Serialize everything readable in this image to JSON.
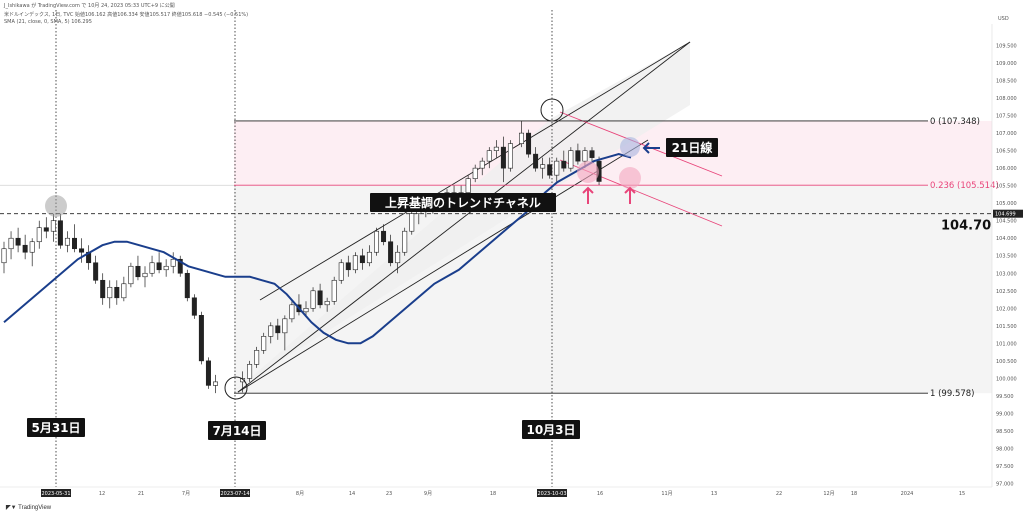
{
  "header": {
    "line1": "J_Ishikawa が TradingView.com で 10月 24, 2023 05:33 UTC+9 に公開",
    "line2": "米ドルインデックス, 1日, TVC  始値106.162  高値106.334  安値105.517  終値105.618  −0.545 (−0.51%)",
    "line3": "SMA (21, close, 0, SMA, 5)  106.295"
  },
  "currency": "USD",
  "footer_brand": "TradingView",
  "colors": {
    "sma": "#1a3e8c",
    "fib_pink": "#e8457a",
    "ring_pink": "#f4a6c0",
    "ring_blue": "#a9b4e0",
    "arrow_pink": "#e8457a",
    "arrow_blue": "#1a3e8c"
  },
  "chart_data": {
    "type": "candlestick",
    "symbol": "米ドルインデックス",
    "timeframe": "1日",
    "ylim": [
      96.9,
      110.0
    ],
    "x_tick_labels": [
      "2023-05-31",
      "12",
      "21",
      "7月",
      "2023-07-14",
      "8月",
      "14",
      "23",
      "9月",
      "18",
      "2023-10-03",
      "16",
      "11月",
      "13",
      "22",
      "12月",
      "18",
      "2024",
      "15"
    ],
    "y_tick_labels": [
      "109.500",
      "109.000",
      "108.500",
      "108.000",
      "107.500",
      "107.000",
      "106.500",
      "106.000",
      "105.500",
      "105.000",
      "104.500",
      "104.000",
      "103.500",
      "103.000",
      "102.500",
      "102.000",
      "101.500",
      "101.000",
      "100.500",
      "100.000",
      "99.500",
      "99.000",
      "98.500",
      "98.000",
      "97.500",
      "97.000"
    ],
    "price_badge": "104.699",
    "fib_levels": [
      {
        "label": "0 (107.348)",
        "value": 107.348
      },
      {
        "label": "0.236 (105.514)",
        "value": 105.514
      },
      {
        "label": "1 (99.578)",
        "value": 99.578
      }
    ],
    "horizontal_line": {
      "value": 104.7,
      "label": "104.70"
    },
    "candles": [
      {
        "o": 103.3,
        "h": 103.9,
        "l": 103.0,
        "c": 103.7
      },
      {
        "o": 103.7,
        "h": 104.2,
        "l": 103.4,
        "c": 104.0
      },
      {
        "o": 104.0,
        "h": 104.3,
        "l": 103.6,
        "c": 103.8
      },
      {
        "o": 103.8,
        "h": 104.1,
        "l": 103.4,
        "c": 103.6
      },
      {
        "o": 103.6,
        "h": 104.0,
        "l": 103.2,
        "c": 103.9
      },
      {
        "o": 103.9,
        "h": 104.5,
        "l": 103.7,
        "c": 104.3
      },
      {
        "o": 104.3,
        "h": 104.6,
        "l": 104.0,
        "c": 104.2
      },
      {
        "o": 104.2,
        "h": 104.7,
        "l": 103.9,
        "c": 104.5
      },
      {
        "o": 104.5,
        "h": 104.7,
        "l": 103.7,
        "c": 103.8
      },
      {
        "o": 103.8,
        "h": 104.2,
        "l": 103.6,
        "c": 104.0
      },
      {
        "o": 104.0,
        "h": 104.4,
        "l": 103.6,
        "c": 103.7
      },
      {
        "o": 103.7,
        "h": 104.0,
        "l": 103.3,
        "c": 103.6
      },
      {
        "o": 103.6,
        "h": 103.8,
        "l": 103.1,
        "c": 103.3
      },
      {
        "o": 103.3,
        "h": 103.5,
        "l": 102.7,
        "c": 102.8
      },
      {
        "o": 102.8,
        "h": 103.0,
        "l": 102.1,
        "c": 102.3
      },
      {
        "o": 102.3,
        "h": 102.8,
        "l": 102.0,
        "c": 102.6
      },
      {
        "o": 102.6,
        "h": 102.8,
        "l": 102.1,
        "c": 102.3
      },
      {
        "o": 102.3,
        "h": 102.9,
        "l": 102.2,
        "c": 102.7
      },
      {
        "o": 102.7,
        "h": 103.3,
        "l": 102.6,
        "c": 103.2
      },
      {
        "o": 103.2,
        "h": 103.5,
        "l": 102.8,
        "c": 102.9
      },
      {
        "o": 102.9,
        "h": 103.2,
        "l": 102.6,
        "c": 103.0
      },
      {
        "o": 103.0,
        "h": 103.5,
        "l": 102.9,
        "c": 103.3
      },
      {
        "o": 103.3,
        "h": 103.6,
        "l": 103.0,
        "c": 103.1
      },
      {
        "o": 103.1,
        "h": 103.4,
        "l": 102.9,
        "c": 103.2
      },
      {
        "o": 103.2,
        "h": 103.6,
        "l": 103.0,
        "c": 103.4
      },
      {
        "o": 103.4,
        "h": 103.5,
        "l": 102.9,
        "c": 103.0
      },
      {
        "o": 103.0,
        "h": 103.1,
        "l": 102.2,
        "c": 102.3
      },
      {
        "o": 102.3,
        "h": 102.4,
        "l": 101.7,
        "c": 101.8
      },
      {
        "o": 101.8,
        "h": 101.9,
        "l": 100.4,
        "c": 100.5
      },
      {
        "o": 100.5,
        "h": 100.6,
        "l": 99.7,
        "c": 99.8
      },
      {
        "o": 99.8,
        "h": 100.1,
        "l": 99.58,
        "c": 99.9
      },
      {
        "o": 99.9,
        "h": 100.2,
        "l": 99.6,
        "c": 100.0
      },
      {
        "o": 100.0,
        "h": 100.5,
        "l": 99.9,
        "c": 100.4
      },
      {
        "o": 100.4,
        "h": 100.9,
        "l": 100.3,
        "c": 100.8
      },
      {
        "o": 100.8,
        "h": 101.3,
        "l": 100.7,
        "c": 101.2
      },
      {
        "o": 101.2,
        "h": 101.6,
        "l": 101.0,
        "c": 101.5
      },
      {
        "o": 101.5,
        "h": 101.7,
        "l": 101.1,
        "c": 101.3
      },
      {
        "o": 101.3,
        "h": 101.8,
        "l": 100.8,
        "c": 101.7
      },
      {
        "o": 101.7,
        "h": 102.2,
        "l": 101.6,
        "c": 102.1
      },
      {
        "o": 102.1,
        "h": 102.4,
        "l": 101.8,
        "c": 101.9
      },
      {
        "o": 101.9,
        "h": 102.2,
        "l": 101.8,
        "c": 102.0
      },
      {
        "o": 102.0,
        "h": 102.6,
        "l": 101.9,
        "c": 102.5
      },
      {
        "o": 102.5,
        "h": 102.7,
        "l": 102.0,
        "c": 102.1
      },
      {
        "o": 102.1,
        "h": 102.3,
        "l": 101.9,
        "c": 102.2
      },
      {
        "o": 102.2,
        "h": 102.9,
        "l": 102.1,
        "c": 102.8
      },
      {
        "o": 102.8,
        "h": 103.4,
        "l": 102.7,
        "c": 103.3
      },
      {
        "o": 103.3,
        "h": 103.5,
        "l": 102.9,
        "c": 103.1
      },
      {
        "o": 103.1,
        "h": 103.6,
        "l": 103.0,
        "c": 103.5
      },
      {
        "o": 103.5,
        "h": 103.7,
        "l": 103.1,
        "c": 103.3
      },
      {
        "o": 103.3,
        "h": 103.8,
        "l": 103.2,
        "c": 103.6
      },
      {
        "o": 103.6,
        "h": 104.3,
        "l": 103.5,
        "c": 104.2
      },
      {
        "o": 104.2,
        "h": 104.4,
        "l": 103.8,
        "c": 103.9
      },
      {
        "o": 103.9,
        "h": 104.1,
        "l": 103.2,
        "c": 103.3
      },
      {
        "o": 103.3,
        "h": 103.8,
        "l": 103.0,
        "c": 103.6
      },
      {
        "o": 103.6,
        "h": 104.3,
        "l": 103.5,
        "c": 104.2
      },
      {
        "o": 104.2,
        "h": 104.8,
        "l": 104.1,
        "c": 104.7
      },
      {
        "o": 104.7,
        "h": 104.9,
        "l": 104.4,
        "c": 104.8
      },
      {
        "o": 104.8,
        "h": 105.0,
        "l": 104.6,
        "c": 104.9
      },
      {
        "o": 104.9,
        "h": 105.2,
        "l": 104.7,
        "c": 105.1
      },
      {
        "o": 105.1,
        "h": 105.2,
        "l": 104.8,
        "c": 104.9
      },
      {
        "o": 104.9,
        "h": 105.4,
        "l": 104.8,
        "c": 105.3
      },
      {
        "o": 105.3,
        "h": 105.5,
        "l": 105.0,
        "c": 105.1
      },
      {
        "o": 105.1,
        "h": 105.5,
        "l": 105.0,
        "c": 105.3
      },
      {
        "o": 105.3,
        "h": 105.8,
        "l": 105.2,
        "c": 105.7
      },
      {
        "o": 105.7,
        "h": 106.1,
        "l": 105.6,
        "c": 106.0
      },
      {
        "o": 106.0,
        "h": 106.3,
        "l": 105.8,
        "c": 106.2
      },
      {
        "o": 106.2,
        "h": 106.6,
        "l": 106.0,
        "c": 106.5
      },
      {
        "o": 106.5,
        "h": 106.8,
        "l": 106.3,
        "c": 106.6
      },
      {
        "o": 106.6,
        "h": 106.9,
        "l": 105.6,
        "c": 106.0
      },
      {
        "o": 106.0,
        "h": 106.8,
        "l": 105.9,
        "c": 106.7
      },
      {
        "o": 106.7,
        "h": 107.35,
        "l": 106.6,
        "c": 107.0
      },
      {
        "o": 107.0,
        "h": 107.1,
        "l": 106.3,
        "c": 106.4
      },
      {
        "o": 106.4,
        "h": 106.6,
        "l": 105.9,
        "c": 106.0
      },
      {
        "o": 106.0,
        "h": 106.3,
        "l": 105.7,
        "c": 106.1
      },
      {
        "o": 106.1,
        "h": 106.3,
        "l": 105.7,
        "c": 105.8
      },
      {
        "o": 105.8,
        "h": 106.3,
        "l": 105.6,
        "c": 106.2
      },
      {
        "o": 106.2,
        "h": 106.5,
        "l": 105.9,
        "c": 106.0
      },
      {
        "o": 106.0,
        "h": 106.6,
        "l": 105.9,
        "c": 106.5
      },
      {
        "o": 106.5,
        "h": 106.7,
        "l": 106.1,
        "c": 106.2
      },
      {
        "o": 106.2,
        "h": 106.6,
        "l": 106.0,
        "c": 106.5
      },
      {
        "o": 106.5,
        "h": 106.6,
        "l": 106.2,
        "c": 106.3
      },
      {
        "o": 106.2,
        "h": 106.33,
        "l": 105.52,
        "c": 105.62
      }
    ],
    "sma_series": {
      "name": "SMA (21, close, 0, SMA, 5)",
      "values": [
        101.6,
        101.9,
        102.2,
        102.5,
        102.8,
        103.1,
        103.4,
        103.6,
        103.8,
        103.9,
        103.9,
        103.8,
        103.7,
        103.6,
        103.4,
        103.2,
        103.1,
        103.0,
        102.9,
        102.9,
        102.9,
        102.8,
        102.7,
        102.4,
        102.0,
        101.6,
        101.3,
        101.1,
        101.0,
        101.0,
        101.2,
        101.5,
        101.8,
        102.1,
        102.4,
        102.7,
        102.9,
        103.1,
        103.4,
        103.7,
        104.0,
        104.3,
        104.6,
        104.9,
        105.3,
        105.6,
        105.8,
        106.0,
        106.2,
        106.3,
        106.4,
        106.3
      ]
    },
    "annotations": {
      "date_labels": [
        {
          "text": "5月31日"
        },
        {
          "text": "7月14日"
        },
        {
          "text": "10月3日"
        }
      ],
      "channel_label": "上昇基調のトレンドチャネル",
      "sma_label": "21日線"
    }
  }
}
